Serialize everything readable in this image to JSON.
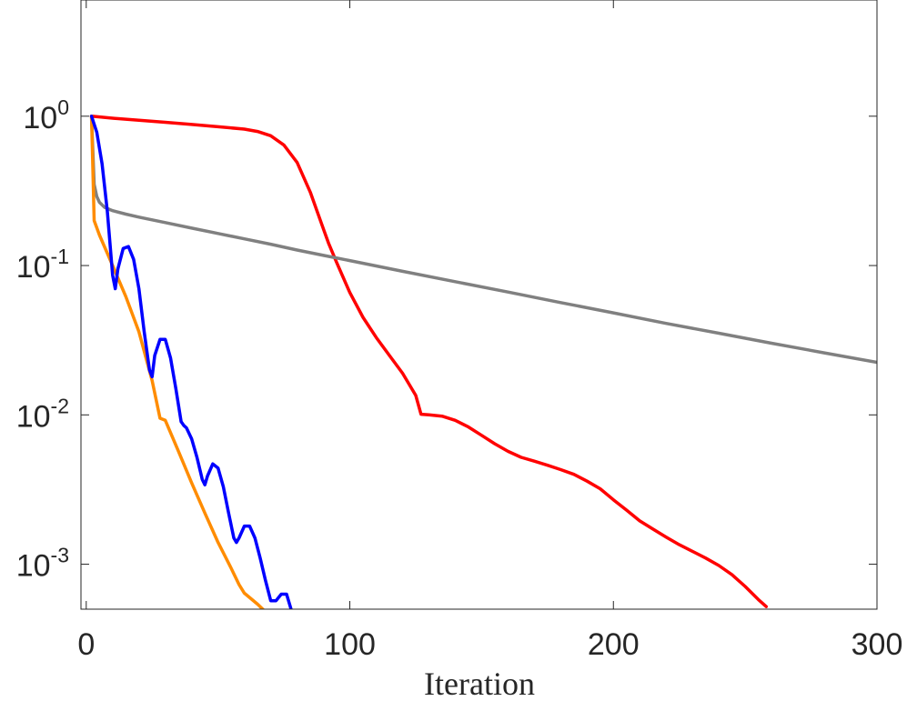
{
  "chart_data": {
    "type": "line",
    "title": "",
    "xlabel": "Iteration",
    "ylabel": "",
    "xlim": [
      -2,
      300
    ],
    "ylim": [
      0.0005,
      6
    ],
    "yscale": "log",
    "grid": false,
    "legend": "none",
    "xticks": [
      0,
      100,
      200,
      300
    ],
    "yticks": [
      {
        "value": 1,
        "base": "10",
        "exp": "0"
      },
      {
        "value": 0.1,
        "base": "10",
        "exp": "-1"
      },
      {
        "value": 0.01,
        "base": "10",
        "exp": "-2"
      },
      {
        "value": 0.001,
        "base": "10",
        "exp": "-3"
      }
    ],
    "series": [
      {
        "color": "#ff0000",
        "x": [
          2,
          10,
          20,
          30,
          40,
          50,
          60,
          65,
          70,
          75,
          80,
          85,
          88,
          90,
          92,
          95,
          100,
          105,
          110,
          115,
          120,
          125,
          127,
          130,
          135,
          140,
          145,
          150,
          155,
          160,
          165,
          170,
          175,
          180,
          185,
          190,
          195,
          200,
          205,
          210,
          215,
          220,
          225,
          230,
          235,
          240,
          245,
          250,
          255,
          258
        ],
        "y": [
          1,
          0.97,
          0.94,
          0.91,
          0.88,
          0.85,
          0.82,
          0.79,
          0.74,
          0.64,
          0.49,
          0.31,
          0.22,
          0.175,
          0.14,
          0.105,
          0.066,
          0.045,
          0.033,
          0.025,
          0.019,
          0.0135,
          0.0101,
          0.01,
          0.0098,
          0.0092,
          0.0083,
          0.0073,
          0.0064,
          0.0057,
          0.0052,
          0.0049,
          0.0046,
          0.0043,
          0.004,
          0.0036,
          0.0032,
          0.0027,
          0.0023,
          0.00195,
          0.00172,
          0.00152,
          0.00135,
          0.00122,
          0.0011,
          0.00098,
          0.00085,
          0.00071,
          0.00058,
          0.00052
        ]
      },
      {
        "color": "#808080",
        "x": [
          2,
          3,
          4,
          5,
          7,
          10,
          15,
          20,
          30,
          40,
          50,
          60,
          70,
          80,
          90,
          100,
          120,
          140,
          160,
          180,
          200,
          220,
          240,
          260,
          280,
          300
        ],
        "y": [
          1,
          0.35,
          0.29,
          0.265,
          0.245,
          0.233,
          0.221,
          0.211,
          0.194,
          0.178,
          0.164,
          0.151,
          0.139,
          0.127,
          0.117,
          0.108,
          0.0915,
          0.078,
          0.0665,
          0.0565,
          0.0482,
          0.041,
          0.0352,
          0.0302,
          0.026,
          0.0225
        ]
      },
      {
        "color": "#ff8c00",
        "x": [
          2,
          3,
          5,
          10,
          15,
          20,
          25,
          28,
          30,
          35,
          40,
          45,
          50,
          55,
          58,
          60,
          65,
          68
        ],
        "y": [
          1,
          0.2,
          0.16,
          0.1,
          0.062,
          0.036,
          0.017,
          0.0095,
          0.0092,
          0.0057,
          0.0035,
          0.0022,
          0.0014,
          0.00094,
          0.00073,
          0.00064,
          0.00054,
          0.00048
        ]
      },
      {
        "color": "#0000ff",
        "x": [
          2,
          4,
          6,
          8,
          10,
          11,
          12,
          14,
          16,
          18,
          20,
          22,
          24,
          25,
          26,
          28,
          30,
          32,
          34,
          36,
          37,
          38,
          40,
          42,
          44,
          45,
          46,
          48,
          50,
          52,
          54,
          56,
          57,
          58,
          60,
          62,
          64,
          66,
          68,
          70,
          72,
          74,
          76,
          78
        ],
        "y": [
          1,
          0.78,
          0.48,
          0.23,
          0.086,
          0.07,
          0.095,
          0.13,
          0.134,
          0.11,
          0.07,
          0.036,
          0.02,
          0.018,
          0.025,
          0.032,
          0.032,
          0.024,
          0.015,
          0.009,
          0.0085,
          0.0082,
          0.0069,
          0.0052,
          0.0037,
          0.0034,
          0.0039,
          0.0047,
          0.0044,
          0.0033,
          0.0022,
          0.0015,
          0.0014,
          0.0015,
          0.0018,
          0.0018,
          0.0015,
          0.0011,
          0.00078,
          0.00057,
          0.00057,
          0.00063,
          0.00063,
          0.00048
        ]
      }
    ]
  }
}
